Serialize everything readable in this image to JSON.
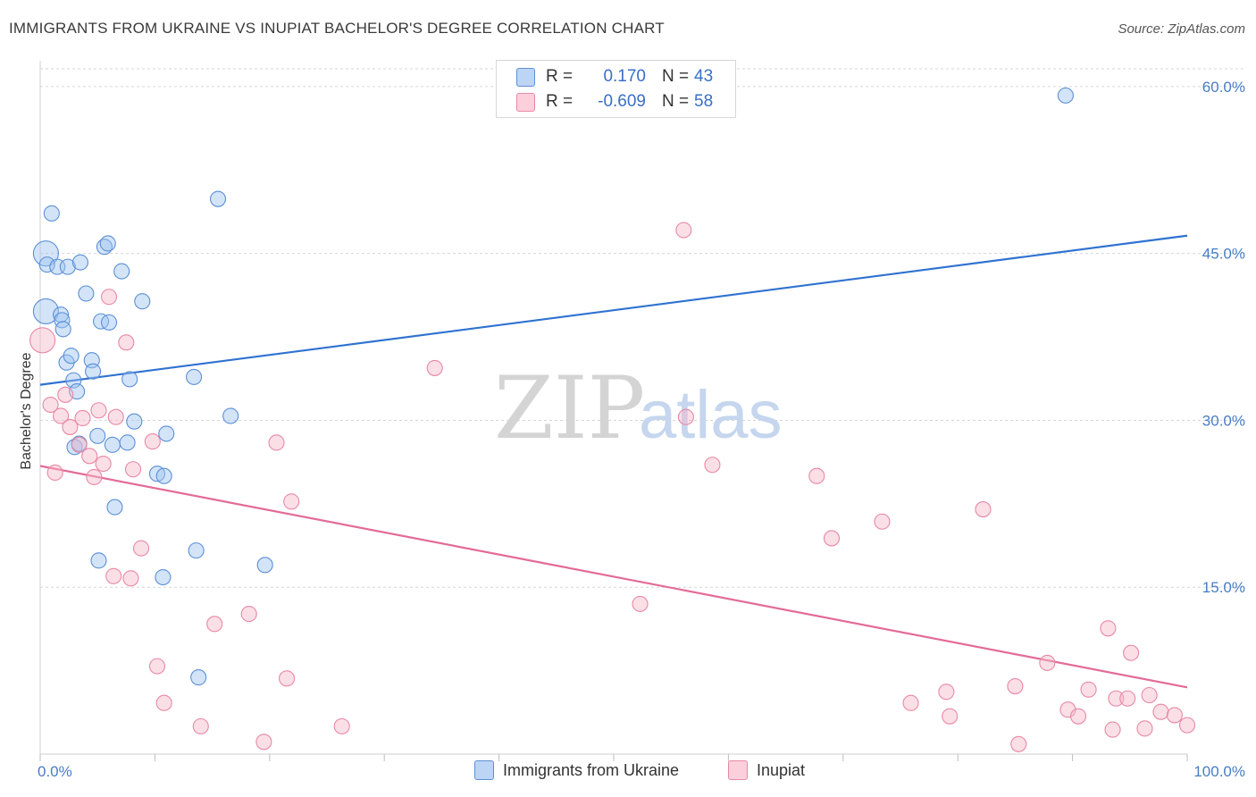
{
  "title": "IMMIGRANTS FROM UKRAINE VS INUPIAT BACHELOR'S DEGREE CORRELATION CHART",
  "source": "Source: ZipAtlas.com",
  "watermark": {
    "zip": "ZIP",
    "atlas": "atlas"
  },
  "legend": {
    "rows": [
      {
        "r_label": "R =",
        "r_value": "0.170",
        "n_label": "N =",
        "n_value": "43"
      },
      {
        "r_label": "R =",
        "r_value": "-0.609",
        "n_label": "N =",
        "n_value": "58"
      }
    ]
  },
  "chart_data": {
    "type": "scatter",
    "title": "IMMIGRANTS FROM UKRAINE VS INUPIAT BACHELOR'S DEGREE CORRELATION CHART",
    "xlabel": "",
    "ylabel": "Bachelor's Degree",
    "xlim": [
      0,
      100
    ],
    "ylim": [
      0,
      62
    ],
    "x_tick_labels": [
      "0.0%",
      "100.0%"
    ],
    "y_ticks": [
      15,
      30,
      45,
      60
    ],
    "y_tick_labels": [
      "15.0%",
      "30.0%",
      "45.0%",
      "60.0%"
    ],
    "grid": true,
    "legend_position": "bottom",
    "series": [
      {
        "name": "Immigrants from Ukraine",
        "color": "#9dc3ef",
        "stroke": "#5b8fd6",
        "line_color": "#2f72d0",
        "trend": {
          "x": [
            0,
            100
          ],
          "y": [
            33.2,
            46.6
          ]
        },
        "points": [
          [
            0.5,
            39.8
          ],
          [
            0.5,
            45.0
          ],
          [
            0.6,
            44.0
          ],
          [
            1.0,
            48.6
          ],
          [
            1.5,
            43.8
          ],
          [
            1.8,
            39.5
          ],
          [
            1.9,
            39.0
          ],
          [
            2.0,
            38.2
          ],
          [
            2.3,
            35.2
          ],
          [
            2.4,
            43.8
          ],
          [
            2.7,
            35.8
          ],
          [
            2.9,
            33.6
          ],
          [
            3.0,
            27.6
          ],
          [
            3.2,
            32.6
          ],
          [
            3.4,
            27.9
          ],
          [
            3.5,
            44.2
          ],
          [
            4.0,
            41.4
          ],
          [
            4.5,
            35.4
          ],
          [
            4.6,
            34.4
          ],
          [
            5.0,
            28.6
          ],
          [
            5.1,
            17.4
          ],
          [
            5.3,
            38.9
          ],
          [
            5.6,
            45.6
          ],
          [
            5.9,
            45.9
          ],
          [
            6.0,
            38.8
          ],
          [
            6.3,
            27.8
          ],
          [
            6.5,
            22.2
          ],
          [
            7.1,
            43.4
          ],
          [
            7.6,
            28.0
          ],
          [
            7.8,
            33.7
          ],
          [
            8.2,
            29.9
          ],
          [
            8.9,
            40.7
          ],
          [
            10.2,
            25.2
          ],
          [
            10.8,
            25.0
          ],
          [
            11.0,
            28.8
          ],
          [
            10.7,
            15.9
          ],
          [
            13.4,
            33.9
          ],
          [
            13.6,
            18.3
          ],
          [
            13.8,
            6.9
          ],
          [
            15.5,
            49.9
          ],
          [
            16.6,
            30.4
          ],
          [
            19.6,
            17.0
          ],
          [
            89.4,
            59.2
          ]
        ]
      },
      {
        "name": "Inupiat",
        "color": "#f7b8ca",
        "stroke": "#e888a6",
        "line_color": "#e36b97",
        "trend": {
          "x": [
            0,
            100
          ],
          "y": [
            25.9,
            6.0
          ]
        },
        "points": [
          [
            0.2,
            37.2
          ],
          [
            0.9,
            31.4
          ],
          [
            1.3,
            25.3
          ],
          [
            1.8,
            30.4
          ],
          [
            2.2,
            32.3
          ],
          [
            2.6,
            29.4
          ],
          [
            3.4,
            27.8
          ],
          [
            3.7,
            30.2
          ],
          [
            4.3,
            26.8
          ],
          [
            4.7,
            24.9
          ],
          [
            5.1,
            30.9
          ],
          [
            5.5,
            26.1
          ],
          [
            6.0,
            41.1
          ],
          [
            6.4,
            16.0
          ],
          [
            6.6,
            30.3
          ],
          [
            7.5,
            37.0
          ],
          [
            7.9,
            15.8
          ],
          [
            8.1,
            25.6
          ],
          [
            8.8,
            18.5
          ],
          [
            9.8,
            28.1
          ],
          [
            10.2,
            7.9
          ],
          [
            10.8,
            4.6
          ],
          [
            14.0,
            2.5
          ],
          [
            15.2,
            11.7
          ],
          [
            18.2,
            12.6
          ],
          [
            19.5,
            1.1
          ],
          [
            20.6,
            28.0
          ],
          [
            21.5,
            6.8
          ],
          [
            21.9,
            22.7
          ],
          [
            26.3,
            2.5
          ],
          [
            34.4,
            34.7
          ],
          [
            52.3,
            13.5
          ],
          [
            56.1,
            47.1
          ],
          [
            56.3,
            30.3
          ],
          [
            58.6,
            26.0
          ],
          [
            67.7,
            25.0
          ],
          [
            69.0,
            19.4
          ],
          [
            73.4,
            20.9
          ],
          [
            75.9,
            4.6
          ],
          [
            79.0,
            5.6
          ],
          [
            79.3,
            3.4
          ],
          [
            82.2,
            22.0
          ],
          [
            85.0,
            6.1
          ],
          [
            85.3,
            0.9
          ],
          [
            87.8,
            8.2
          ],
          [
            89.6,
            4.0
          ],
          [
            90.5,
            3.4
          ],
          [
            91.4,
            5.8
          ],
          [
            93.1,
            11.3
          ],
          [
            93.5,
            2.2
          ],
          [
            93.8,
            5.0
          ],
          [
            94.8,
            5.0
          ],
          [
            95.1,
            9.1
          ],
          [
            96.3,
            2.3
          ],
          [
            96.7,
            5.3
          ],
          [
            97.7,
            3.8
          ],
          [
            98.9,
            3.5
          ],
          [
            100.0,
            2.6
          ]
        ]
      }
    ]
  }
}
